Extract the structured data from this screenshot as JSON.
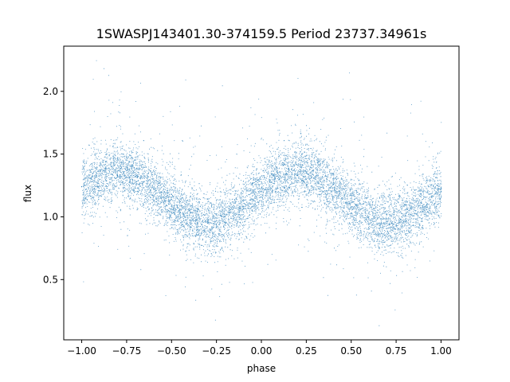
{
  "chart_data": {
    "type": "scatter",
    "title": "1SWASPJ143401.30-374159.5 Period 23737.34961s",
    "xlabel": "phase",
    "ylabel": "flux",
    "xlim": [
      -1.1,
      1.1
    ],
    "ylim": [
      0.02,
      2.36
    ],
    "x_ticks": [
      -1.0,
      -0.75,
      -0.5,
      -0.25,
      0.0,
      0.25,
      0.5,
      0.75,
      1.0
    ],
    "x_tick_labels": [
      "−1.00",
      "−0.75",
      "−0.50",
      "−0.25",
      "0.00",
      "0.25",
      "0.50",
      "0.75",
      "1.00"
    ],
    "y_ticks": [
      0.5,
      1.0,
      1.5,
      2.0
    ],
    "y_tick_labels": [
      "0.5",
      "1.0",
      "1.5",
      "2.0"
    ],
    "grid": false,
    "point_color": "#1f77b4",
    "model": {
      "description": "sinusoidal folded light curve, two cycles over phase -1..1",
      "mean_flux": 1.16,
      "amplitude": 0.2,
      "peak_phases": [
        -0.8,
        0.2
      ],
      "trough_phases": [
        -0.25,
        0.75
      ],
      "scatter_sigma": 0.12
    },
    "series": [
      {
        "x": [
          -1.0,
          -0.9,
          -0.8,
          -0.7,
          -0.6,
          -0.5,
          -0.4,
          -0.3,
          -0.25,
          -0.2,
          -0.1,
          0.0,
          0.1,
          0.2,
          0.3,
          0.4,
          0.5,
          0.6,
          0.7,
          0.75,
          0.8,
          0.9,
          1.0
        ],
        "y": [
          1.24,
          1.3,
          1.33,
          1.32,
          1.27,
          1.18,
          1.05,
          0.95,
          0.92,
          0.95,
          1.08,
          1.2,
          1.3,
          1.33,
          1.32,
          1.26,
          1.17,
          1.04,
          0.95,
          0.93,
          0.96,
          1.06,
          1.2
        ]
      }
    ]
  }
}
